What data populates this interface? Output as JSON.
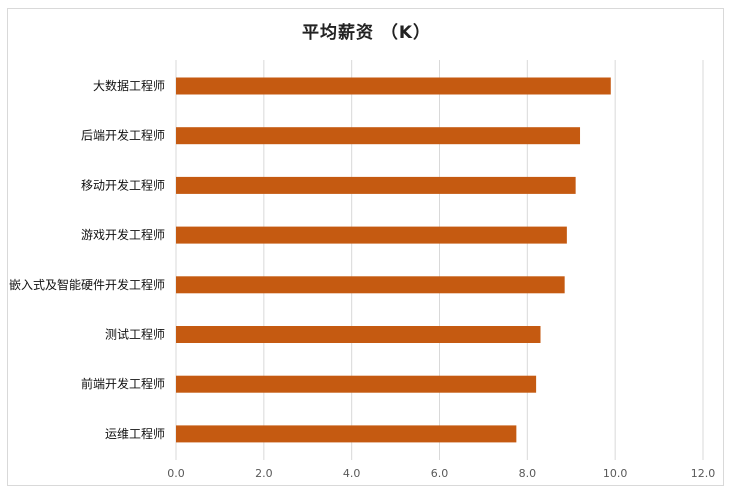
{
  "chart_data": {
    "type": "bar",
    "orientation": "horizontal",
    "title": "平均薪资 （K）",
    "categories": [
      "大数据工程师",
      "后端开发工程师",
      "移动开发工程师",
      "游戏开发工程师",
      "嵌入式及智能硬件开发工程师",
      "测试工程师",
      "前端开发工程师",
      "运维工程师"
    ],
    "values": [
      9.9,
      9.2,
      9.1,
      8.9,
      8.85,
      8.3,
      8.2,
      7.75
    ],
    "xlim": [
      0,
      12
    ],
    "xticks": [
      "0.0",
      "2.0",
      "4.0",
      "6.0",
      "8.0",
      "10.0",
      "12.0"
    ],
    "xtick_values": [
      0,
      2,
      4,
      6,
      8,
      10,
      12
    ],
    "grid": "vertical",
    "legend": "none",
    "bar_color": "#c55a11",
    "grid_color": "#d9d9d9"
  }
}
